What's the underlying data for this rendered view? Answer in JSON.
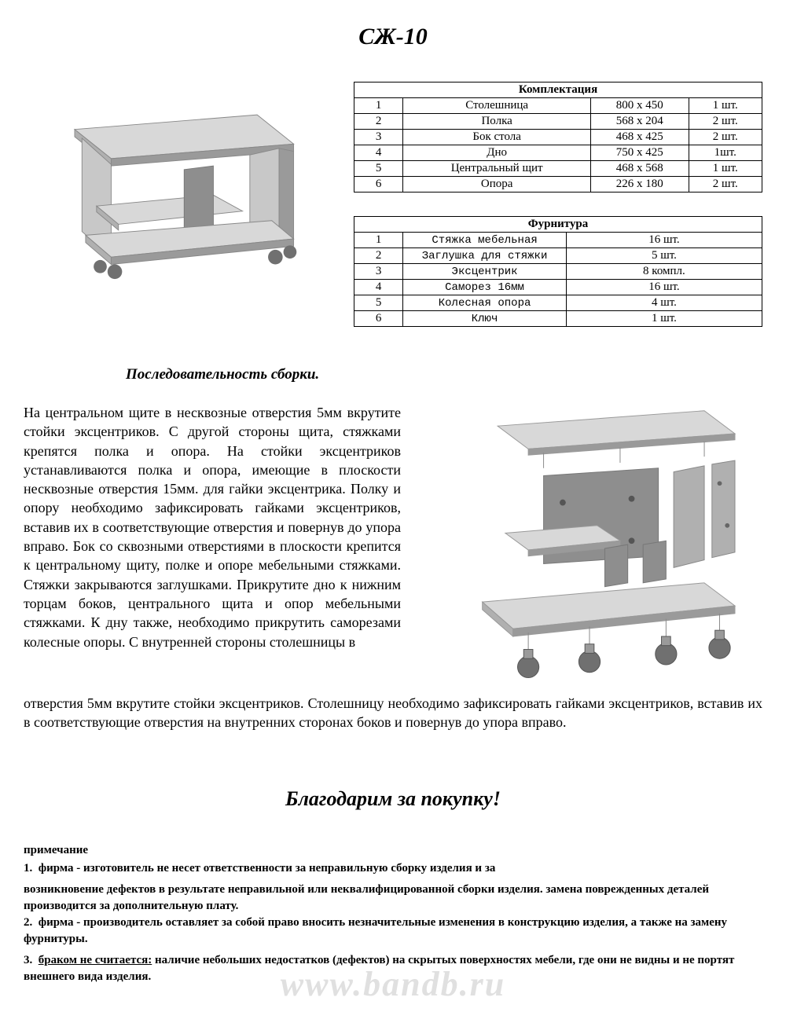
{
  "title": "СЖ-10",
  "parts_table": {
    "header": "Комплектация",
    "rows": [
      {
        "n": "1",
        "name": "Столешница",
        "dim": "800 х 450",
        "qty": "1 шт."
      },
      {
        "n": "2",
        "name": "Полка",
        "dim": "568 х 204",
        "qty": "2 шт."
      },
      {
        "n": "3",
        "name": "Бок стола",
        "dim": "468 х 425",
        "qty": "2 шт."
      },
      {
        "n": "4",
        "name": "Дно",
        "dim": "750 х 425",
        "qty": "1шт."
      },
      {
        "n": "5",
        "name": "Центральный щит",
        "dim": "468 х 568",
        "qty": "1 шт."
      },
      {
        "n": "6",
        "name": "Опора",
        "dim": "226 х 180",
        "qty": "2 шт."
      }
    ],
    "col_widths": [
      "12%",
      "46%",
      "24%",
      "18%"
    ]
  },
  "hardware_table": {
    "header": "Фурнитура",
    "rows": [
      {
        "n": "1",
        "name": "Стяжка мебельная",
        "qty": "16 шт."
      },
      {
        "n": "2",
        "name": "Заглушка для стяжки",
        "qty": "5 шт."
      },
      {
        "n": "3",
        "name": "Эксцентрик",
        "qty": "8 компл."
      },
      {
        "n": "4",
        "name": "Саморез 16мм",
        "qty": "16 шт."
      },
      {
        "n": "5",
        "name": "Колесная опора",
        "qty": "4 шт."
      },
      {
        "n": "6",
        "name": "Ключ",
        "qty": "1 шт."
      }
    ],
    "col_widths": [
      "12%",
      "40%",
      "48%"
    ]
  },
  "assembly": {
    "heading": "Последовательность сборки.",
    "text_col": "На центральном щите в несквозные отверстия 5мм вкрутите стойки эксцентриков. С другой стороны щита, стяжками крепятся полка и опора. На стойки эксцентриков устанавливаются полка и опора, имеющие в плоскости несквозные отверстия 15мм. для гайки эксцентрика. Полку и опору необходимо зафиксировать гайками эксцентриков, вставив их в соответствующие отверстия и повернув до упора вправо. Бок со сквозными отверстиями в плоскости крепится к центральному щиту, полке и опоре мебельными стяжками. Стяжки закрываются заглушками. Прикрутите дно к нижним торцам боков, центрального щита и опор мебельными стяжками. К дну также, необходимо прикрутить саморезами колесные опоры. С внутренней стороны столешницы в",
    "text_cont": "отверстия 5мм вкрутите стойки эксцентриков. Столешницу необходимо зафиксировать гайками эксцентриков, вставив их в соответствующие отверстия на внутренних сторонах боков и повернув до упора вправо."
  },
  "thanks": "Благодарим за покупку!",
  "notes": {
    "heading": "примечание",
    "items": [
      {
        "n": "1.",
        "prefix": "",
        "text": "фирма - изготовитель не несет ответственности за неправильную сборку изделия и за",
        "cont": "возникновение дефектов в результате неправильной или неквалифицированной сборки изделия. замена поврежденных деталей производится за дополнительную плату."
      },
      {
        "n": "2.",
        "prefix": "",
        "text": "фирма - производитель оставляет за собой право вносить незначительные изменения в конструкцию изделия, а также на замену фурнитуры.",
        "cont": ""
      },
      {
        "n": "3.",
        "prefix": "браком не считается:",
        "text": " наличие небольших недостатков (дефектов) на скрытых поверхностях   мебели, где они не видны и не портят внешнего вида изделия.",
        "cont": ""
      }
    ]
  },
  "watermark": "www.bandb.ru",
  "colors": {
    "text": "#000000",
    "bg": "#ffffff",
    "border": "#000000",
    "panel_light": "#d8d8d8",
    "panel_dark": "#8e8e8e",
    "panel_mid": "#b0b0b0",
    "wheel": "#707070",
    "watermark": "#cccccc"
  }
}
